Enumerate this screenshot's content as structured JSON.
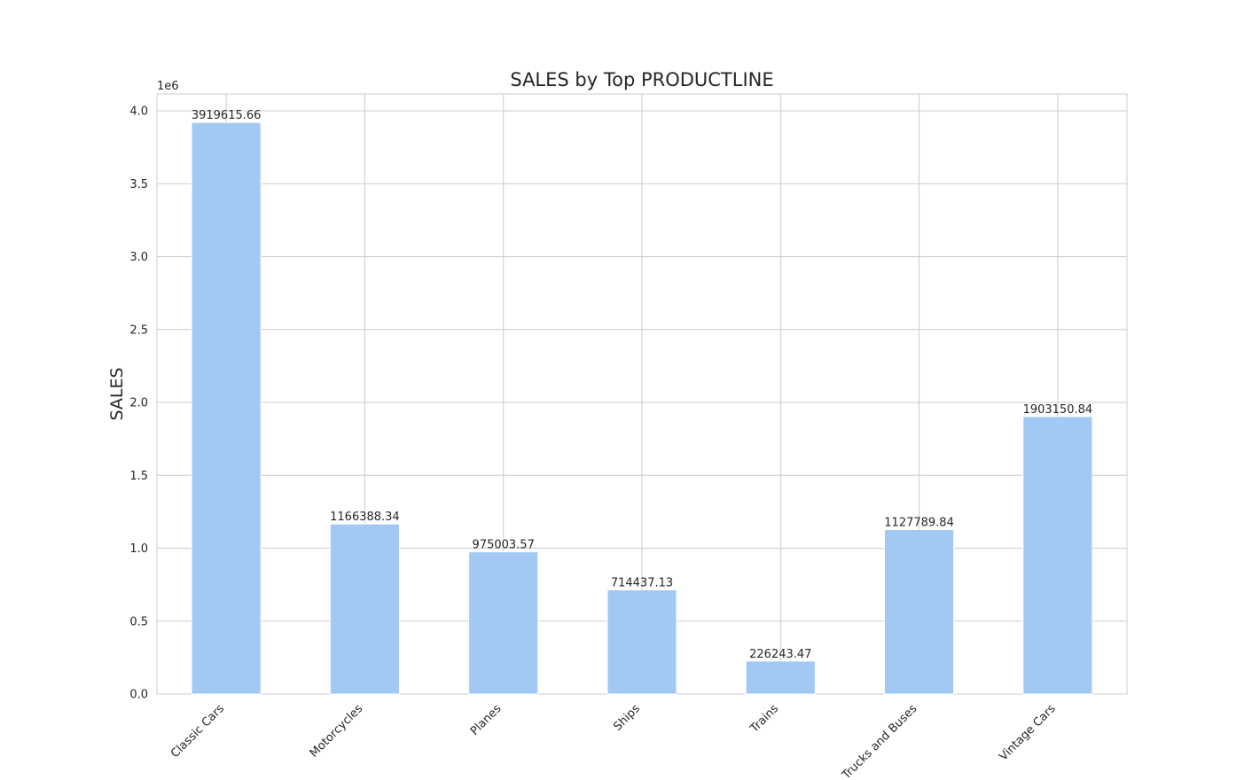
{
  "chart_data": {
    "type": "bar",
    "title": "SALES by Top PRODUCTLINE",
    "xlabel": "",
    "ylabel": "SALES",
    "y_offset_label": "1e6",
    "categories": [
      "Classic Cars",
      "Motorcycles",
      "Planes",
      "Ships",
      "Trains",
      "Trucks and Buses",
      "Vintage Cars"
    ],
    "values": [
      3919615.66,
      1166388.34,
      975003.57,
      714437.13,
      226243.47,
      1127789.84,
      1903150.84
    ],
    "data_labels": [
      "3919615.66",
      "1166388.34",
      "975003.57",
      "714437.13",
      "226243.47",
      "1127789.84",
      "1903150.84"
    ],
    "y_ticks": [
      0.0,
      0.5,
      1.0,
      1.5,
      2.0,
      2.5,
      3.0,
      3.5,
      4.0
    ],
    "y_tick_labels": [
      "0.0",
      "0.5",
      "1.0",
      "1.5",
      "2.0",
      "2.5",
      "3.0",
      "3.5",
      "4.0"
    ],
    "y_tick_scale": 1000000,
    "ylim": [
      0,
      4115596.44
    ],
    "grid": true,
    "bar_color": "#a1c9f4",
    "grid_color": "#cccccc",
    "text_color": "#262626",
    "background": "#ffffff"
  }
}
